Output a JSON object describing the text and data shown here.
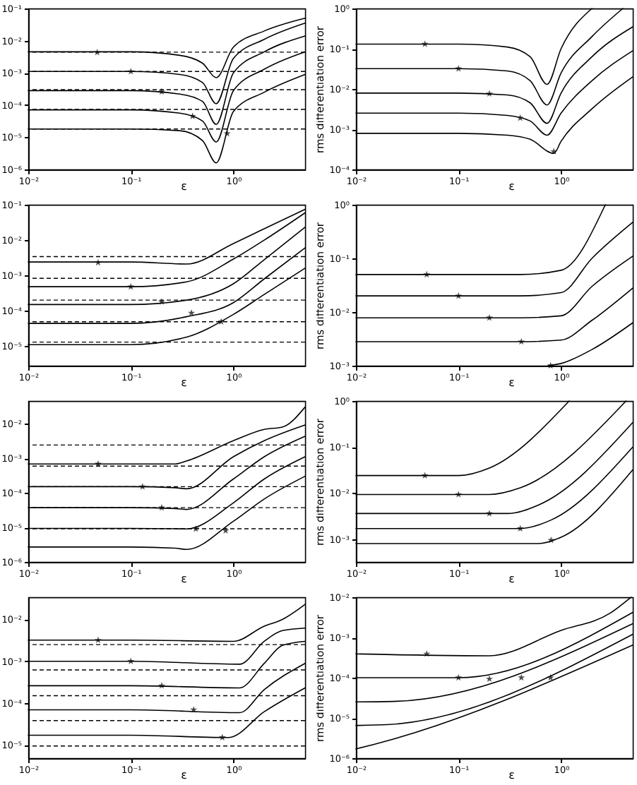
{
  "chart_data": [
    {
      "type": "line",
      "xlabel": "ε",
      "log": "xy",
      "xlim": [
        0.01,
        5
      ],
      "xticks": [
        {
          "value": 0.01,
          "label": "10⁻²"
        },
        {
          "value": 0.1,
          "label": "10⁻¹"
        },
        {
          "value": 1,
          "label": "10⁰"
        }
      ],
      "ylim": [
        1e-06,
        0.1
      ],
      "yticks": [
        {
          "value": 1e-06,
          "label": "10⁻⁶"
        },
        {
          "value": 1e-05,
          "label": "10⁻⁵"
        },
        {
          "value": 0.0001,
          "label": "10⁻⁴"
        },
        {
          "value": 0.001,
          "label": "10⁻³"
        },
        {
          "value": 0.01,
          "label": "10⁻²"
        },
        {
          "value": 0.1,
          "label": "10⁻¹"
        }
      ],
      "ref_lines": [
        {
          "axis": "y",
          "value": 0.0044,
          "line_style": "dashed",
          "color": "#000000"
        },
        {
          "axis": "y",
          "value": 0.0011,
          "line_style": "dashed",
          "color": "#000000"
        },
        {
          "axis": "y",
          "value": 0.0003,
          "line_style": "dashed",
          "color": "#000000"
        },
        {
          "axis": "y",
          "value": 7.3e-05,
          "line_style": "dashed",
          "color": "#000000"
        },
        {
          "axis": "y",
          "value": 1.8e-05,
          "line_style": "dashed",
          "color": "#000000"
        }
      ],
      "series": [
        {
          "type": "line",
          "color": "#000000",
          "x": [
            0.01,
            0.1,
            0.3,
            0.5,
            0.68,
            1,
            2,
            5
          ],
          "values": [
            0.0045,
            0.0045,
            0.0035,
            0.002,
            0.00071,
            0.0063,
            0.02,
            0.05
          ]
        },
        {
          "type": "line",
          "color": "#000000",
          "x": [
            0.01,
            0.1,
            0.3,
            0.5,
            0.68,
            1,
            2,
            5
          ],
          "values": [
            0.0011,
            0.0011,
            0.00089,
            0.0005,
            0.00011,
            0.0028,
            0.011,
            0.035
          ]
        },
        {
          "type": "line",
          "color": "#000000",
          "x": [
            0.01,
            0.1,
            0.3,
            0.5,
            0.68,
            1,
            2,
            5
          ],
          "values": [
            0.00028,
            0.00028,
            0.00022,
            0.00013,
            2.5e-05,
            0.001,
            0.0045,
            0.014
          ]
        },
        {
          "type": "line",
          "color": "#000000",
          "x": [
            0.01,
            0.1,
            0.3,
            0.5,
            0.68,
            1,
            2,
            5
          ],
          "values": [
            7.1e-05,
            7.1e-05,
            5.6e-05,
            3.2e-05,
            7.1e-06,
            0.00028,
            0.0013,
            0.0045
          ]
        },
        {
          "type": "line",
          "color": "#000000",
          "x": [
            0.01,
            0.1,
            0.3,
            0.5,
            0.68,
            1,
            2,
            5
          ],
          "values": [
            1.8e-05,
            1.8e-05,
            1.6e-05,
            7.9e-06,
            1.6e-06,
            6.3e-05,
            0.00025,
            0.00089
          ]
        },
        {
          "type": "scatter",
          "marker": "star",
          "color": "#000000",
          "x": [
            0.047,
            0.1,
            0.2,
            0.4,
            0.87
          ],
          "values": [
            0.0043,
            0.0011,
            0.00026,
            4.5e-05,
            1.3e-05
          ]
        }
      ]
    },
    {
      "type": "line",
      "xlabel": "ε",
      "ylabel": "rms differentiation error",
      "log": "xy",
      "xlim": [
        0.01,
        5
      ],
      "xticks": [
        {
          "value": 0.01,
          "label": "10⁻²"
        },
        {
          "value": 0.1,
          "label": "10⁻¹"
        },
        {
          "value": 1,
          "label": "10⁰"
        }
      ],
      "ylim": [
        0.0001,
        1
      ],
      "yticks": [
        {
          "value": 0.0001,
          "label": "10⁻⁴"
        },
        {
          "value": 0.001,
          "label": "10⁻³"
        },
        {
          "value": 0.01,
          "label": "10⁻²"
        },
        {
          "value": 0.1,
          "label": "10⁻¹"
        },
        {
          "value": 1,
          "label": "10⁰"
        }
      ],
      "series": [
        {
          "type": "line",
          "color": "#000000",
          "x": [
            0.01,
            0.1,
            0.3,
            0.5,
            0.73,
            1,
            2
          ],
          "values": [
            0.13,
            0.13,
            0.11,
            0.063,
            0.013,
            0.1,
            1
          ]
        },
        {
          "type": "line",
          "color": "#000000",
          "x": [
            0.01,
            0.1,
            0.3,
            0.5,
            0.73,
            1,
            2,
            4
          ],
          "values": [
            0.032,
            0.032,
            0.028,
            0.016,
            0.004,
            0.025,
            0.2,
            1
          ]
        },
        {
          "type": "line",
          "color": "#000000",
          "x": [
            0.01,
            0.1,
            0.3,
            0.5,
            0.73,
            1,
            2,
            5
          ],
          "values": [
            0.0079,
            0.0079,
            0.0071,
            0.0045,
            0.0014,
            0.0079,
            0.063,
            0.35
          ]
        },
        {
          "type": "line",
          "color": "#000000",
          "x": [
            0.01,
            0.1,
            0.3,
            0.5,
            0.73,
            1,
            2,
            5
          ],
          "values": [
            0.0025,
            0.0025,
            0.0022,
            0.0016,
            0.00071,
            0.0025,
            0.016,
            0.089
          ]
        },
        {
          "type": "line",
          "color": "#000000",
          "x": [
            0.01,
            0.1,
            0.3,
            0.5,
            0.85,
            1,
            2,
            5
          ],
          "values": [
            0.00079,
            0.00079,
            0.00071,
            0.00056,
            0.00025,
            0.0005,
            0.0032,
            0.02
          ]
        },
        {
          "type": "scatter",
          "marker": "star",
          "color": "#000000",
          "x": [
            0.047,
            0.1,
            0.2,
            0.4,
            0.85
          ],
          "values": [
            0.13,
            0.032,
            0.0076,
            0.0019,
            0.00028
          ]
        }
      ]
    },
    {
      "type": "line",
      "xlabel": "ε",
      "log": "xy",
      "xlim": [
        0.01,
        5
      ],
      "xticks": [
        {
          "value": 0.01,
          "label": "10⁻²"
        },
        {
          "value": 0.1,
          "label": "10⁻¹"
        },
        {
          "value": 1,
          "label": "10⁰"
        }
      ],
      "ylim": [
        2.8e-06,
        0.1
      ],
      "yticks": [
        {
          "value": 1e-05,
          "label": "10⁻⁵"
        },
        {
          "value": 0.0001,
          "label": "10⁻⁴"
        },
        {
          "value": 0.001,
          "label": "10⁻³"
        },
        {
          "value": 0.01,
          "label": "10⁻²"
        },
        {
          "value": 0.1,
          "label": "10⁻¹"
        }
      ],
      "ref_lines": [
        {
          "axis": "y",
          "value": 0.0034,
          "line_style": "dashed",
          "color": "#000000"
        },
        {
          "axis": "y",
          "value": 0.00083,
          "line_style": "dashed",
          "color": "#000000"
        },
        {
          "axis": "y",
          "value": 0.0002,
          "line_style": "dashed",
          "color": "#000000"
        },
        {
          "axis": "y",
          "value": 4.9e-05,
          "line_style": "dashed",
          "color": "#000000"
        },
        {
          "axis": "y",
          "value": 1.3e-05,
          "line_style": "dashed",
          "color": "#000000"
        }
      ],
      "series": [
        {
          "type": "line",
          "color": "#000000",
          "x": [
            0.01,
            0.1,
            0.35,
            1,
            2,
            5
          ],
          "values": [
            0.0024,
            0.0024,
            0.0021,
            0.008,
            0.021,
            0.074
          ]
        },
        {
          "type": "line",
          "color": "#000000",
          "x": [
            0.01,
            0.1,
            0.35,
            1,
            2,
            5
          ],
          "values": [
            0.00048,
            0.00048,
            0.00066,
            0.0029,
            0.01,
            0.059
          ]
        },
        {
          "type": "line",
          "color": "#000000",
          "x": [
            0.01,
            0.1,
            0.35,
            1,
            2,
            5
          ],
          "values": [
            0.00015,
            0.00015,
            0.0002,
            0.00058,
            0.0028,
            0.023
          ]
        },
        {
          "type": "line",
          "color": "#000000",
          "x": [
            0.01,
            0.1,
            0.35,
            1,
            2,
            5
          ],
          "values": [
            4.4e-05,
            4.4e-05,
            6.8e-05,
            0.00017,
            0.0008,
            0.006
          ]
        },
        {
          "type": "line",
          "color": "#000000",
          "x": [
            0.01,
            0.1,
            0.35,
            1,
            2,
            5
          ],
          "values": [
            1.1e-05,
            1.1e-05,
            1.8e-05,
            7.9e-05,
            0.00029,
            0.0016
          ]
        },
        {
          "type": "scatter",
          "marker": "star",
          "color": "#000000",
          "x": [
            0.048,
            0.1,
            0.2,
            0.39,
            0.76
          ],
          "values": [
            0.0023,
            0.00048,
            0.00018,
            8.7e-05,
            4.9e-05
          ]
        }
      ]
    },
    {
      "type": "line",
      "xlabel": "ε",
      "ylabel": "rms differentiation error",
      "log": "xy",
      "xlim": [
        0.01,
        5
      ],
      "xticks": [
        {
          "value": 0.01,
          "label": "10⁻²"
        },
        {
          "value": 0.1,
          "label": "10⁻¹"
        },
        {
          "value": 1,
          "label": "10⁰"
        }
      ],
      "ylim": [
        0.001,
        1
      ],
      "yticks": [
        {
          "value": 0.001,
          "label": "10⁻³"
        },
        {
          "value": 0.01,
          "label": "10⁻²"
        },
        {
          "value": 0.1,
          "label": "10⁻¹"
        },
        {
          "value": 1,
          "label": "10⁰"
        }
      ],
      "series": [
        {
          "type": "line",
          "color": "#000000",
          "x": [
            0.01,
            0.1,
            0.4,
            1,
            2.7
          ],
          "values": [
            0.05,
            0.05,
            0.05,
            0.06,
            1
          ]
        },
        {
          "type": "line",
          "color": "#000000",
          "x": [
            0.01,
            0.1,
            0.4,
            1,
            2,
            5
          ],
          "values": [
            0.02,
            0.02,
            0.02,
            0.023,
            0.1,
            0.47
          ]
        },
        {
          "type": "line",
          "color": "#000000",
          "x": [
            0.01,
            0.1,
            0.4,
            1,
            2,
            5
          ],
          "values": [
            0.0078,
            0.0078,
            0.0078,
            0.0085,
            0.03,
            0.11
          ]
        },
        {
          "type": "line",
          "color": "#000000",
          "x": [
            0.01,
            0.1,
            0.4,
            1,
            2,
            5
          ],
          "values": [
            0.0028,
            0.0028,
            0.0028,
            0.003,
            0.007,
            0.028
          ]
        },
        {
          "type": "line",
          "color": "#000000",
          "x": [
            0.75,
            1,
            2,
            5
          ],
          "values": [
            0.001,
            0.0011,
            0.002,
            0.0063
          ]
        },
        {
          "type": "scatter",
          "marker": "star",
          "color": "#000000",
          "x": [
            0.049,
            0.1,
            0.2,
            0.41,
            0.79
          ],
          "values": [
            0.05,
            0.02,
            0.0078,
            0.0028,
            0.001
          ]
        }
      ]
    },
    {
      "type": "line",
      "xlabel": "ε",
      "log": "xy",
      "xlim": [
        0.01,
        5
      ],
      "xticks": [
        {
          "value": 0.01,
          "label": "10⁻²"
        },
        {
          "value": 0.1,
          "label": "10⁻¹"
        },
        {
          "value": 1,
          "label": "10⁰"
        }
      ],
      "ylim": [
        1e-06,
        0.045
      ],
      "yticks": [
        {
          "value": 1e-06,
          "label": "10⁻⁶"
        },
        {
          "value": 1e-05,
          "label": "10⁻⁵"
        },
        {
          "value": 0.0001,
          "label": "10⁻⁴"
        },
        {
          "value": 0.001,
          "label": "10⁻³"
        },
        {
          "value": 0.01,
          "label": "10⁻²"
        }
      ],
      "ref_lines": [
        {
          "axis": "y",
          "value": 0.0024,
          "line_style": "dashed",
          "color": "#000000"
        },
        {
          "axis": "y",
          "value": 0.00059,
          "line_style": "dashed",
          "color": "#000000"
        },
        {
          "axis": "y",
          "value": 0.00015,
          "line_style": "dashed",
          "color": "#000000"
        },
        {
          "axis": "y",
          "value": 3.7e-05,
          "line_style": "dashed",
          "color": "#000000"
        },
        {
          "axis": "y",
          "value": 9.1e-06,
          "line_style": "dashed",
          "color": "#000000"
        }
      ],
      "series": [
        {
          "type": "line",
          "color": "#000000",
          "x": [
            0.01,
            0.1,
            0.27,
            0.35,
            1,
            2,
            3,
            5
          ],
          "values": [
            0.00068,
            0.00068,
            0.00068,
            0.00083,
            0.0032,
            0.0068,
            0.0079,
            0.03
          ]
        },
        {
          "type": "line",
          "color": "#000000",
          "x": [
            0.01,
            0.1,
            0.27,
            0.35,
            1,
            2,
            5
          ],
          "values": [
            0.00015,
            0.00015,
            0.00014,
            0.00013,
            0.0011,
            0.0032,
            0.0091
          ]
        },
        {
          "type": "line",
          "color": "#000000",
          "x": [
            0.01,
            0.1,
            0.27,
            0.35,
            1,
            2,
            5
          ],
          "values": [
            3.7e-05,
            3.7e-05,
            3.5e-05,
            3.3e-05,
            0.00025,
            0.0011,
            0.0043
          ]
        },
        {
          "type": "line",
          "color": "#000000",
          "x": [
            0.01,
            0.1,
            0.27,
            0.35,
            1,
            2,
            5
          ],
          "values": [
            9.3e-06,
            9.3e-06,
            9.1e-06,
            9e-06,
            5.1e-05,
            0.00025,
            0.0011
          ]
        },
        {
          "type": "line",
          "color": "#000000",
          "x": [
            0.01,
            0.1,
            0.27,
            0.35,
            1,
            2,
            5
          ],
          "values": [
            2.7e-06,
            2.7e-06,
            2.5e-06,
            2.3e-06,
            1.5e-05,
            6.6e-05,
            0.0003
          ]
        },
        {
          "type": "scatter",
          "marker": "star",
          "color": "#000000",
          "x": [
            0.048,
            0.13,
            0.2,
            0.43,
            0.84
          ],
          "values": [
            0.00068,
            0.00015,
            3.7e-05,
            9e-06,
            8e-06
          ]
        }
      ]
    },
    {
      "type": "line",
      "xlabel": "ε",
      "ylabel": "rms differentiation error",
      "log": "xy",
      "xlim": [
        0.01,
        5
      ],
      "xticks": [
        {
          "value": 0.01,
          "label": "10⁻²"
        },
        {
          "value": 0.1,
          "label": "10⁻¹"
        },
        {
          "value": 1,
          "label": "10⁰"
        }
      ],
      "ylim": [
        0.00032,
        1
      ],
      "yticks": [
        {
          "value": 0.001,
          "label": "10⁻³"
        },
        {
          "value": 0.01,
          "label": "10⁻²"
        },
        {
          "value": 0.1,
          "label": "10⁻¹"
        },
        {
          "value": 1,
          "label": "10⁰"
        }
      ],
      "series": [
        {
          "type": "line",
          "color": "#000000",
          "x": [
            0.01,
            0.1,
            0.2,
            1.2
          ],
          "values": [
            0.024,
            0.024,
            0.035,
            1
          ]
        },
        {
          "type": "line",
          "color": "#000000",
          "x": [
            0.01,
            0.2,
            0.4,
            4.3
          ],
          "values": [
            0.0093,
            0.0093,
            0.013,
            1
          ]
        },
        {
          "type": "line",
          "color": "#000000",
          "x": [
            0.01,
            0.3,
            0.6,
            5
          ],
          "values": [
            0.0036,
            0.0036,
            0.0055,
            0.34
          ]
        },
        {
          "type": "line",
          "color": "#000000",
          "x": [
            0.01,
            0.4,
            0.8,
            5
          ],
          "values": [
            0.0017,
            0.0017,
            0.0026,
            0.1
          ]
        },
        {
          "type": "line",
          "color": "#000000",
          "x": [
            0.01,
            0.6,
            1,
            5
          ],
          "values": [
            0.0008,
            0.0008,
            0.0011,
            0.032
          ]
        },
        {
          "type": "scatter",
          "marker": "star",
          "color": "#000000",
          "x": [
            0.047,
            0.1,
            0.2,
            0.4,
            0.8
          ],
          "values": [
            0.024,
            0.0093,
            0.0036,
            0.0017,
            0.00095
          ]
        }
      ]
    },
    {
      "type": "line",
      "xlabel": "ε",
      "log": "xy",
      "xlim": [
        0.01,
        5
      ],
      "xticks": [
        {
          "value": 0.01,
          "label": "10⁻²"
        },
        {
          "value": 0.1,
          "label": "10⁻¹"
        },
        {
          "value": 1,
          "label": "10⁰"
        }
      ],
      "ylim": [
        4.8e-06,
        0.034
      ],
      "yticks": [
        {
          "value": 1e-05,
          "label": "10⁻⁵"
        },
        {
          "value": 0.0001,
          "label": "10⁻⁴"
        },
        {
          "value": 0.001,
          "label": "10⁻³"
        },
        {
          "value": 0.01,
          "label": "10⁻²"
        }
      ],
      "ref_lines": [
        {
          "axis": "y",
          "value": 0.0025,
          "line_style": "dashed",
          "color": "#000000"
        },
        {
          "axis": "y",
          "value": 0.00062,
          "line_style": "dashed",
          "color": "#000000"
        },
        {
          "axis": "y",
          "value": 0.00015,
          "line_style": "dashed",
          "color": "#000000"
        },
        {
          "axis": "y",
          "value": 3.8e-05,
          "line_style": "dashed",
          "color": "#000000"
        },
        {
          "axis": "y",
          "value": 9.4e-06,
          "line_style": "dashed",
          "color": "#000000"
        }
      ],
      "series": [
        {
          "type": "line",
          "color": "#000000",
          "x": [
            0.01,
            0.1,
            1,
            2,
            3,
            5
          ],
          "values": [
            0.0032,
            0.0032,
            0.003,
            0.0069,
            0.01,
            0.023
          ]
        },
        {
          "type": "line",
          "color": "#000000",
          "x": [
            0.01,
            0.1,
            1.15,
            2,
            3,
            5
          ],
          "values": [
            0.001,
            0.001,
            0.00085,
            0.003,
            0.0054,
            0.0062
          ]
        },
        {
          "type": "line",
          "color": "#000000",
          "x": [
            0.01,
            0.1,
            1.15,
            2,
            3,
            5
          ],
          "values": [
            0.00026,
            0.00026,
            0.00023,
            0.00089,
            0.0024,
            0.003
          ]
        },
        {
          "type": "line",
          "color": "#000000",
          "x": [
            0.01,
            0.1,
            1.15,
            2,
            5
          ],
          "values": [
            6.9e-05,
            6.9e-05,
            5.9e-05,
            0.00021,
            0.00089
          ]
        },
        {
          "type": "line",
          "color": "#000000",
          "x": [
            0.01,
            0.1,
            0.9,
            2,
            5
          ],
          "values": [
            1.7e-05,
            1.7e-05,
            1.5e-05,
            6.2e-05,
            0.00023
          ]
        },
        {
          "type": "scatter",
          "marker": "star",
          "color": "#000000",
          "x": [
            0.048,
            0.1,
            0.2,
            0.41,
            0.78
          ],
          "values": [
            0.0032,
            0.001,
            0.00026,
            6.9e-05,
            1.5e-05
          ]
        }
      ]
    },
    {
      "type": "line",
      "xlabel": "ε",
      "ylabel": "rms differentiation error",
      "log": "xy",
      "xlim": [
        0.01,
        5
      ],
      "xticks": [
        {
          "value": 0.01,
          "label": "10⁻²"
        },
        {
          "value": 0.1,
          "label": "10⁻¹"
        },
        {
          "value": 1,
          "label": "10⁰"
        }
      ],
      "ylim": [
        1e-06,
        0.01
      ],
      "yticks": [
        {
          "value": 1e-06,
          "label": "10⁻⁶"
        },
        {
          "value": 1e-05,
          "label": "10⁻⁵"
        },
        {
          "value": 0.0001,
          "label": "10⁻⁴"
        },
        {
          "value": 0.001,
          "label": "10⁻³"
        },
        {
          "value": 0.01,
          "label": "10⁻²"
        }
      ],
      "series": [
        {
          "type": "line",
          "color": "#000000",
          "x": [
            0.01,
            0.2,
            1,
            3,
            4.8
          ],
          "values": [
            0.00039,
            0.00035,
            0.0015,
            0.004,
            0.01
          ]
        },
        {
          "type": "line",
          "color": "#000000",
          "x": [
            0.01,
            0.1,
            5
          ],
          "values": [
            0.0001,
            0.0001,
            0.0042
          ]
        },
        {
          "type": "line",
          "color": "#000000",
          "x": [
            0.01,
            0.025,
            5
          ],
          "values": [
            2.5e-05,
            2.6e-05,
            0.0022
          ]
        },
        {
          "type": "line",
          "color": "#000000",
          "x": [
            0.01,
            0.02,
            5
          ],
          "values": [
            6.5e-06,
            6.8e-06,
            0.0012
          ]
        },
        {
          "type": "line",
          "color": "#000000",
          "x": [
            0.01,
            0.015,
            5
          ],
          "values": [
            1.7e-06,
            2.2e-06,
            0.00065
          ]
        },
        {
          "type": "scatter",
          "marker": "star",
          "color": "#000000",
          "x": [
            0.049,
            0.1,
            0.2,
            0.41,
            0.79
          ],
          "values": [
            0.00039,
            0.0001,
            9.3e-05,
            0.0001,
            0.0001
          ]
        }
      ]
    }
  ]
}
